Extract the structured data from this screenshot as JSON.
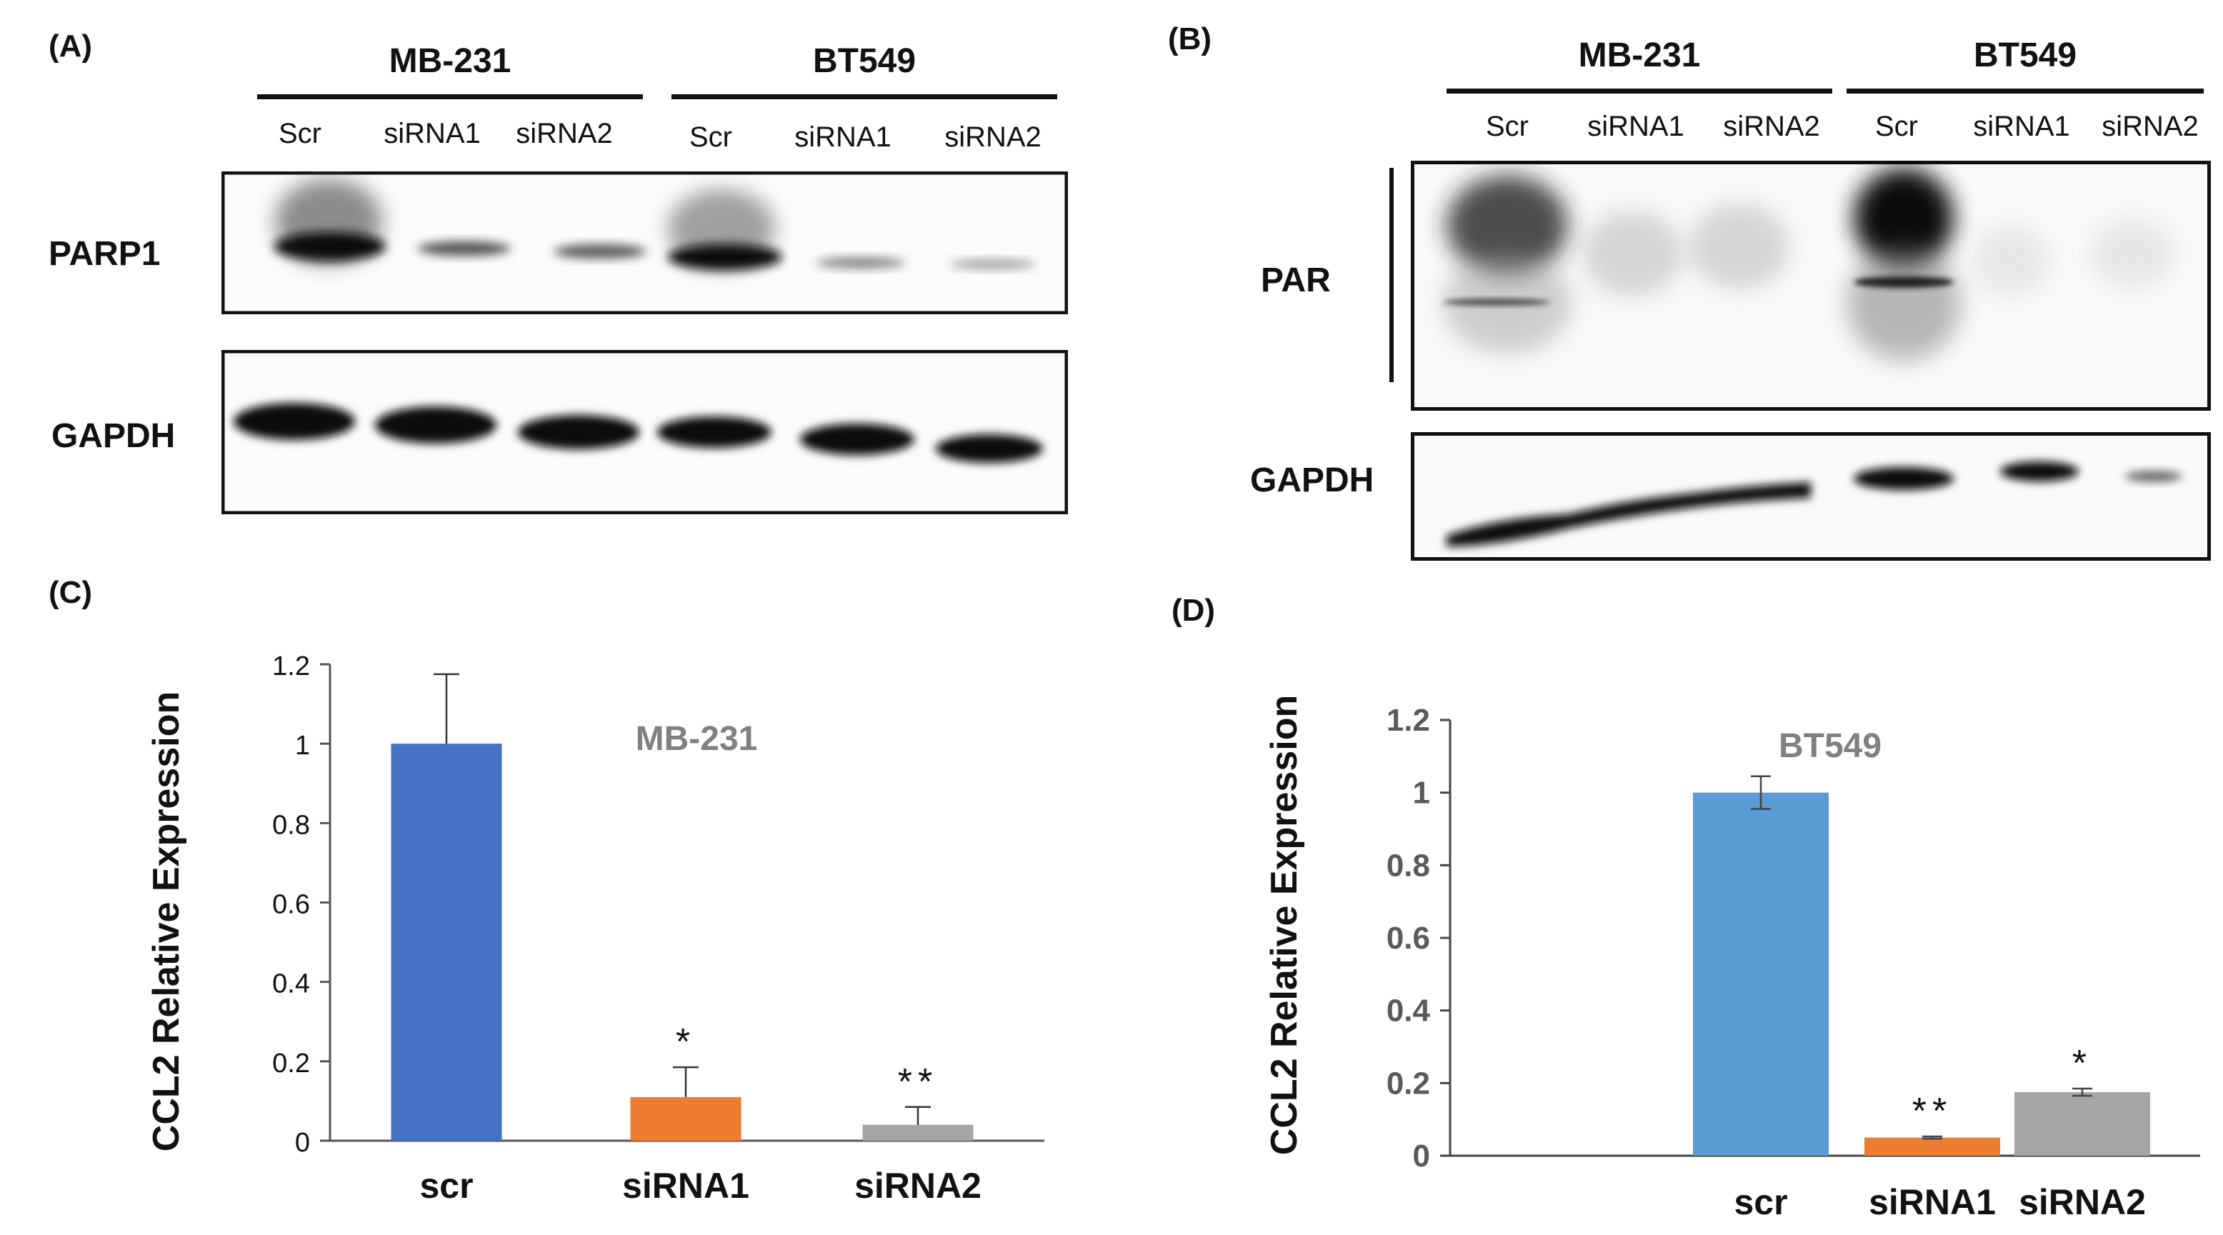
{
  "panels": {
    "a": {
      "label": "(A)",
      "groups": [
        "MB-231",
        "BT549"
      ],
      "lanes": [
        "Scr",
        "siRNA1",
        "siRNA2",
        "Scr",
        "siRNA1",
        "siRNA2"
      ],
      "bands": [
        "PARP1",
        "GAPDH"
      ]
    },
    "b": {
      "label": "(B)",
      "groups": [
        "MB-231",
        "BT549"
      ],
      "lanes": [
        "Scr",
        "siRNA1",
        "siRNA2",
        "Scr",
        "siRNA1",
        "siRNA2"
      ],
      "bands": [
        "PAR",
        "GAPDH"
      ]
    },
    "c": {
      "label": "(C)"
    },
    "d": {
      "label": "(D)"
    }
  },
  "chart_data": [
    {
      "type": "bar",
      "panel": "C",
      "title": "MB-231",
      "ylabel": "CCL2  Relative Expression",
      "categories": [
        "scr",
        "siRNA1",
        "siRNA2"
      ],
      "values": [
        1.0,
        0.11,
        0.04
      ],
      "errors": [
        0.175,
        0.075,
        0.045
      ],
      "annotations": [
        "",
        "*",
        "**"
      ],
      "colors": [
        "#4472C4",
        "#ED7D31",
        "#A5A5A5"
      ],
      "ylim": [
        0,
        1.2
      ],
      "yticks": [
        "0",
        "0.2",
        "0.4",
        "0.6",
        "0.8",
        "1",
        "1.2"
      ]
    },
    {
      "type": "bar",
      "panel": "D",
      "title": "BT549",
      "ylabel": "CCL2 Relative Expression",
      "categories": [
        "scr",
        "siRNA1",
        "siRNA2"
      ],
      "values": [
        1.0,
        0.05,
        0.175
      ],
      "errors": [
        0.045,
        0.003,
        0.01
      ],
      "annotations": [
        "",
        "**",
        "*"
      ],
      "colors": [
        "#5B9BD5",
        "#ED7D31",
        "#A5A5A5"
      ],
      "ylim": [
        0,
        1.2
      ],
      "yticks": [
        "0",
        "0.2",
        "0.4",
        "0.6",
        "0.8",
        "1",
        "1.2"
      ]
    }
  ]
}
